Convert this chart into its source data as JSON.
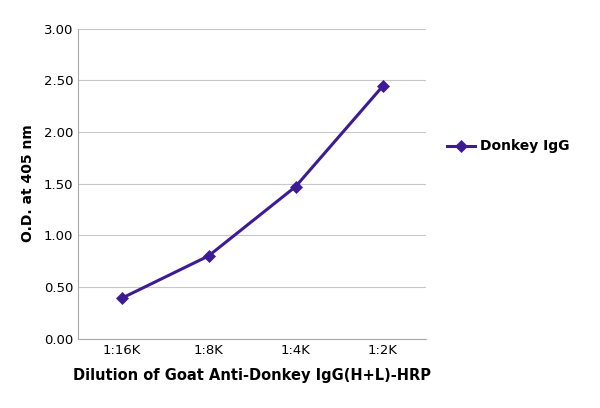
{
  "x_labels": [
    "1:16K",
    "1:8K",
    "1:4K",
    "1:2K"
  ],
  "x_values": [
    1,
    2,
    3,
    4
  ],
  "y_values": [
    0.39,
    0.8,
    1.47,
    2.44
  ],
  "line_color": "#3d1a96",
  "marker_style": "D",
  "marker_size": 6,
  "line_width": 2.2,
  "xlabel": "Dilution of Goat Anti-Donkey IgG(H+L)-HRP",
  "ylabel": "O.D. at 405 nm",
  "ylim": [
    0.0,
    3.0
  ],
  "yticks": [
    0.0,
    0.5,
    1.0,
    1.5,
    2.0,
    2.5,
    3.0
  ],
  "legend_label": "Donkey IgG",
  "background_color": "#ffffff",
  "grid_color": "#c8c8c8",
  "xlabel_fontsize": 10.5,
  "ylabel_fontsize": 10,
  "tick_fontsize": 9.5,
  "legend_fontsize": 10,
  "spine_color": "#aaaaaa"
}
